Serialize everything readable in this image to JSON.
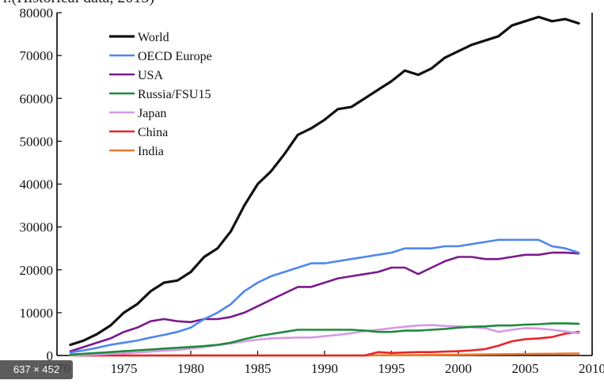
{
  "header": {
    "clipped_title": "r.(Historical data, 2013)"
  },
  "image_badge": {
    "size_label": "637 × 452"
  },
  "chart_data": {
    "type": "line",
    "title": "",
    "xlabel": "",
    "ylabel": "",
    "xlim": [
      1970,
      2010
    ],
    "ylim": [
      0,
      80000
    ],
    "x_ticks": [
      1970,
      1975,
      1980,
      1985,
      1990,
      1995,
      2000,
      2005,
      2010
    ],
    "x_tick_labels": [
      "1970",
      "1975",
      "1980",
      "1985",
      "1990",
      "1995",
      "2000",
      "2005",
      "2010"
    ],
    "y_ticks": [
      0,
      10000,
      20000,
      30000,
      40000,
      50000,
      60000,
      70000,
      80000
    ],
    "y_tick_labels": [
      "0",
      "10000",
      "20000",
      "30000",
      "40000",
      "50000",
      "60000",
      "70000",
      "80000"
    ],
    "grid": false,
    "legend_position": "top-left",
    "x": [
      1971,
      1972,
      1973,
      1974,
      1975,
      1976,
      1977,
      1978,
      1979,
      1980,
      1981,
      1982,
      1983,
      1984,
      1985,
      1986,
      1987,
      1988,
      1989,
      1990,
      1991,
      1992,
      1993,
      1994,
      1995,
      1996,
      1997,
      1998,
      1999,
      2000,
      2001,
      2002,
      2003,
      2004,
      2005,
      2006,
      2007,
      2008,
      2009
    ],
    "series": [
      {
        "name": "World",
        "color": "#111111",
        "values": [
          2500,
          3500,
          5000,
          7000,
          10000,
          12000,
          15000,
          17000,
          17500,
          19500,
          23000,
          25000,
          29000,
          35000,
          40000,
          43000,
          47000,
          51500,
          53000,
          55000,
          57500,
          58000,
          60000,
          62000,
          64000,
          66500,
          65500,
          67000,
          69500,
          71000,
          72500,
          73500,
          74500,
          77000,
          78000,
          79000,
          78000,
          78500,
          77500
        ]
      },
      {
        "name": "OECD Europe",
        "color": "#4f86f0",
        "values": [
          700,
          1200,
          1800,
          2500,
          3000,
          3500,
          4200,
          4800,
          5500,
          6500,
          8500,
          10000,
          12000,
          15000,
          17000,
          18500,
          19500,
          20500,
          21500,
          21500,
          22000,
          22500,
          23000,
          23500,
          24000,
          25000,
          25000,
          25000,
          25500,
          25500,
          26000,
          26500,
          27000,
          27000,
          27000,
          27000,
          25500,
          25000,
          24000
        ]
      },
      {
        "name": "USA",
        "color": "#7a1a8c",
        "values": [
          1000,
          2000,
          3000,
          4000,
          5500,
          6500,
          8000,
          8500,
          8000,
          7800,
          8500,
          8500,
          9000,
          10000,
          11500,
          13000,
          14500,
          16000,
          16000,
          17000,
          18000,
          18500,
          19000,
          19500,
          20500,
          20500,
          19000,
          20500,
          22000,
          23000,
          23000,
          22500,
          22500,
          23000,
          23500,
          23500,
          24000,
          24000,
          23800
        ]
      },
      {
        "name": "Russia/FSU15",
        "color": "#1f8a3a",
        "values": [
          200,
          400,
          600,
          800,
          1000,
          1200,
          1400,
          1600,
          1800,
          2000,
          2200,
          2500,
          3000,
          3800,
          4500,
          5000,
          5500,
          6000,
          6000,
          6000,
          6000,
          6000,
          5800,
          5500,
          5500,
          5800,
          5800,
          6000,
          6200,
          6500,
          6700,
          6800,
          7000,
          7000,
          7200,
          7300,
          7500,
          7500,
          7400
        ]
      },
      {
        "name": "Japan",
        "color": "#d59ae6",
        "values": [
          0,
          100,
          200,
          400,
          500,
          700,
          900,
          1100,
          1300,
          1600,
          2000,
          2400,
          2800,
          3300,
          3700,
          4000,
          4100,
          4200,
          4200,
          4500,
          4800,
          5200,
          5700,
          6000,
          6400,
          6700,
          7000,
          7100,
          6900,
          6800,
          6600,
          6400,
          5500,
          6000,
          6400,
          6300,
          6000,
          5600,
          5200
        ]
      },
      {
        "name": "China",
        "color": "#e8242a",
        "values": [
          0,
          0,
          0,
          0,
          0,
          0,
          0,
          0,
          0,
          0,
          0,
          0,
          0,
          0,
          0,
          0,
          0,
          0,
          0,
          0,
          0,
          0,
          0,
          800,
          600,
          700,
          800,
          800,
          900,
          1000,
          1200,
          1500,
          2300,
          3300,
          3800,
          4000,
          4300,
          5100,
          5500
        ]
      },
      {
        "name": "India",
        "color": "#f07a2a",
        "values": [
          0,
          0,
          0,
          0,
          0,
          0,
          0,
          0,
          0,
          0,
          0,
          0,
          0,
          0,
          0,
          0,
          0,
          0,
          0,
          0,
          0,
          0,
          0,
          50,
          80,
          100,
          120,
          150,
          170,
          200,
          230,
          260,
          290,
          320,
          350,
          380,
          410,
          450,
          480
        ]
      }
    ]
  }
}
